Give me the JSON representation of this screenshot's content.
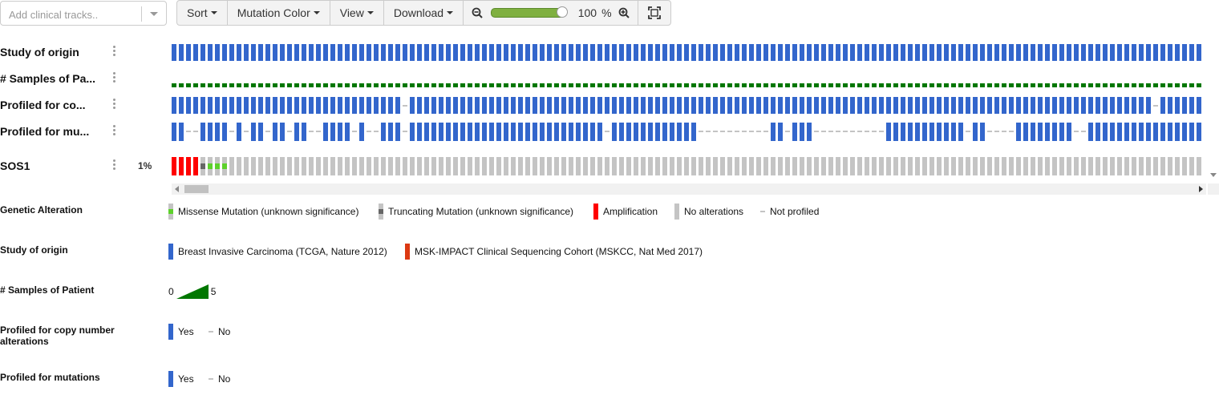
{
  "clinical_select": {
    "placeholder": "Add clinical tracks.."
  },
  "toolbar": {
    "sort": "Sort",
    "mutation_color": "Mutation Color",
    "view": "View",
    "download": "Download",
    "zoom_value": "100",
    "zoom_unit": "%",
    "zoom_level": 1.0
  },
  "tracks": [
    {
      "label": "Study of origin"
    },
    {
      "label": "# Samples of Pa..."
    },
    {
      "label": "Profiled for co..."
    },
    {
      "label": "Profiled for mu..."
    },
    {
      "label": "SOS1",
      "percent": "1%"
    }
  ],
  "colors": {
    "blue": "#3366cc",
    "green_dark": "#007700",
    "red": "#ff0000",
    "grey": "#c4c4c4",
    "missense_green": "#5dd12b",
    "truncating": "#666666",
    "msk_orange": "#dc3912"
  },
  "legends": {
    "genetic": {
      "title": "Genetic Alteration",
      "items": [
        "Missense Mutation (unknown significance)",
        "Truncating Mutation (unknown significance)",
        "Amplification",
        "No alterations",
        "Not profiled"
      ]
    },
    "study": {
      "title": "Study of origin",
      "items": [
        "Breast Invasive Carcinoma (TCGA, Nature 2012)",
        "MSK-IMPACT Clinical Sequencing Cohort (MSKCC, Nat Med 2017)"
      ]
    },
    "samples": {
      "title": "# Samples of Patient",
      "min": "0",
      "max": "5"
    },
    "cna": {
      "title": "Profiled for copy number alterations",
      "yes": "Yes",
      "no": "No"
    },
    "mut": {
      "title": "Profiled for mutations",
      "yes": "Yes",
      "no": "No"
    }
  }
}
